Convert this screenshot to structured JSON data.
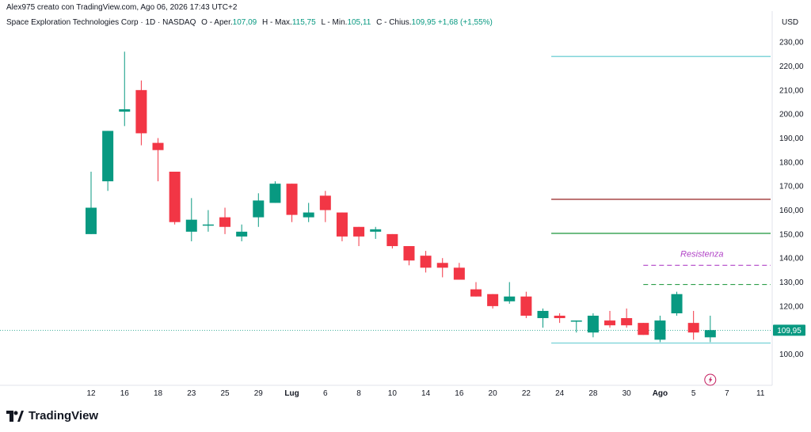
{
  "attribution": "Alex975 creato con TradingView.com, Ago 06, 2026 17:43 UTC+2",
  "legend": {
    "symbol": "Space Exploration Technologies Corp · 1D · NASDAQ",
    "open_label": "O",
    "open_text": "Aper.",
    "open_value": "107,09",
    "high_label": "H",
    "high_text": "Max.",
    "high_value": "115,75",
    "low_label": "L",
    "low_text": "Min.",
    "low_value": "105,11",
    "close_label": "C",
    "close_text": "Chius.",
    "close_value": "109,95",
    "change": "+1,68 (+1,55%)"
  },
  "currency": "USD",
  "brand": {
    "name": "TradingView"
  },
  "colors": {
    "up": "#089981",
    "down": "#f23645",
    "last_line": "#089981",
    "lines_cyan": "#7fd4d9",
    "line_red": "#a64545",
    "line_green": "#2e9e4a",
    "annotation": "#b144c7"
  },
  "chart_data": {
    "type": "candlestick",
    "ylim": [
      87,
      235
    ],
    "y_ticks": [
      100,
      110,
      120,
      130,
      140,
      150,
      160,
      170,
      180,
      190,
      200,
      210,
      220,
      230
    ],
    "y_tick_labels": [
      "100,00",
      "110,00",
      "120,00",
      "130,00",
      "140,00",
      "150,00",
      "160,00",
      "170,00",
      "180,00",
      "190,00",
      "200,00",
      "210,00",
      "220,00",
      "230,00"
    ],
    "x_labels": [
      {
        "i": 0,
        "label": "12"
      },
      {
        "i": 2,
        "label": "16"
      },
      {
        "i": 4,
        "label": "18"
      },
      {
        "i": 6,
        "label": "23"
      },
      {
        "i": 8,
        "label": "25"
      },
      {
        "i": 10,
        "label": "29"
      },
      {
        "i": 12,
        "label": "Lug"
      },
      {
        "i": 14,
        "label": "6"
      },
      {
        "i": 16,
        "label": "8"
      },
      {
        "i": 18,
        "label": "10"
      },
      {
        "i": 20,
        "label": "14"
      },
      {
        "i": 22,
        "label": "16"
      },
      {
        "i": 24,
        "label": "20"
      },
      {
        "i": 26,
        "label": "22"
      },
      {
        "i": 28,
        "label": "24"
      },
      {
        "i": 30,
        "label": "28"
      },
      {
        "i": 32,
        "label": "30"
      },
      {
        "i": 34,
        "label": "Ago"
      },
      {
        "i": 36,
        "label": "5"
      },
      {
        "i": 38,
        "label": "7"
      },
      {
        "i": 40,
        "label": "11"
      }
    ],
    "candles": [
      {
        "o": 150,
        "h": 176,
        "l": 150,
        "c": 161
      },
      {
        "o": 172,
        "h": 193,
        "l": 168,
        "c": 193
      },
      {
        "o": 201,
        "h": 226,
        "l": 195,
        "c": 202
      },
      {
        "o": 210,
        "h": 214,
        "l": 187,
        "c": 192
      },
      {
        "o": 188,
        "h": 190,
        "l": 172,
        "c": 185
      },
      {
        "o": 176,
        "h": 176,
        "l": 154,
        "c": 155
      },
      {
        "o": 151,
        "h": 165,
        "l": 147,
        "c": 156
      },
      {
        "o": 154,
        "h": 160,
        "l": 151,
        "c": 154
      },
      {
        "o": 157,
        "h": 161,
        "l": 150,
        "c": 153
      },
      {
        "o": 149,
        "h": 154,
        "l": 147,
        "c": 151
      },
      {
        "o": 157,
        "h": 167,
        "l": 153,
        "c": 164
      },
      {
        "o": 163,
        "h": 172,
        "l": 163,
        "c": 171
      },
      {
        "o": 171,
        "h": 171,
        "l": 155,
        "c": 158
      },
      {
        "o": 157,
        "h": 163,
        "l": 155,
        "c": 159
      },
      {
        "o": 166,
        "h": 168,
        "l": 155,
        "c": 160
      },
      {
        "o": 159,
        "h": 159,
        "l": 147,
        "c": 149
      },
      {
        "o": 153,
        "h": 153,
        "l": 145,
        "c": 149
      },
      {
        "o": 151,
        "h": 153,
        "l": 148,
        "c": 152
      },
      {
        "o": 150,
        "h": 150,
        "l": 144,
        "c": 145
      },
      {
        "o": 145,
        "h": 145,
        "l": 137,
        "c": 139
      },
      {
        "o": 141,
        "h": 143,
        "l": 134,
        "c": 136
      },
      {
        "o": 138,
        "h": 140,
        "l": 132,
        "c": 136
      },
      {
        "o": 136,
        "h": 138,
        "l": 131,
        "c": 131
      },
      {
        "o": 127,
        "h": 130,
        "l": 124,
        "c": 124
      },
      {
        "o": 125,
        "h": 125,
        "l": 119,
        "c": 120
      },
      {
        "o": 122,
        "h": 130,
        "l": 121,
        "c": 124
      },
      {
        "o": 124,
        "h": 126,
        "l": 115,
        "c": 116
      },
      {
        "o": 115,
        "h": 119,
        "l": 111,
        "c": 118
      },
      {
        "o": 116,
        "h": 117,
        "l": 113,
        "c": 115
      },
      {
        "o": 114,
        "h": 114,
        "l": 109,
        "c": 114
      },
      {
        "o": 109,
        "h": 117,
        "l": 107,
        "c": 116
      },
      {
        "o": 114,
        "h": 118,
        "l": 111,
        "c": 112
      },
      {
        "o": 115,
        "h": 119,
        "l": 111,
        "c": 112
      },
      {
        "o": 113,
        "h": 113,
        "l": 108,
        "c": 108
      },
      {
        "o": 106,
        "h": 116,
        "l": 105,
        "c": 114
      },
      {
        "o": 117,
        "h": 126,
        "l": 116,
        "c": 125
      },
      {
        "o": 113,
        "h": 118,
        "l": 106,
        "c": 109
      },
      {
        "o": 107,
        "h": 116,
        "l": 105,
        "c": 110
      }
    ],
    "last_price": 109.95,
    "last_price_label": "109,95",
    "hlines": [
      {
        "value": 224,
        "from_i": 27.5,
        "color": "#7fd4d9",
        "dash": false
      },
      {
        "value": 164.5,
        "from_i": 27.5,
        "color": "#a64545",
        "dash": false
      },
      {
        "value": 150.3,
        "from_i": 27.5,
        "color": "#2e9e4a",
        "dash": false
      },
      {
        "value": 104.6,
        "from_i": 27.5,
        "color": "#7fd4d9",
        "dash": false
      },
      {
        "value": 137,
        "from_i": 33,
        "color": "#b144c7",
        "dash": true
      },
      {
        "value": 129,
        "from_i": 33,
        "color": "#2e9e4a",
        "dash": true
      }
    ],
    "annotation": {
      "text": "Resistenza",
      "value": 140.5,
      "at_i": 36.5
    }
  }
}
